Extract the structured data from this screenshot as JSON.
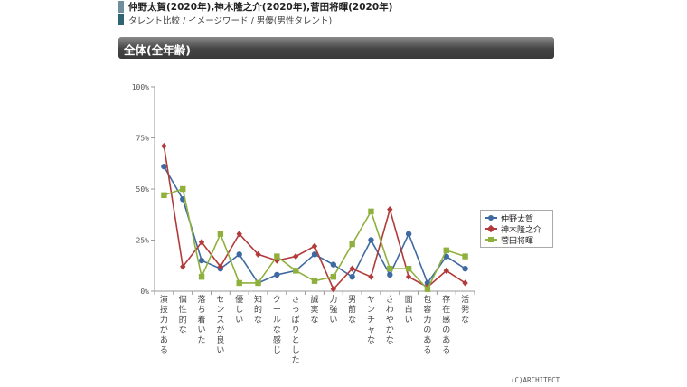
{
  "header": {
    "title": "仲野太賀(2020年),神木隆之介(2020年),菅田将暉(2020年)",
    "breadcrumb": "タレント比較 / イメージワード / 男優(男性タレント)"
  },
  "panel": {
    "title": "全体(全年齢)"
  },
  "copyright": "(C)ARCHITECT",
  "colors": {
    "仲野太賀": "#3f6aa1",
    "神木隆之介": "#b23a3a",
    "菅田将暉": "#8fb03c"
  },
  "chart_data": {
    "type": "line",
    "title": "",
    "xlabel": "",
    "ylabel": "",
    "ylim": [
      0,
      100
    ],
    "yticks": [
      "0%",
      "25%",
      "50%",
      "75%",
      "100%"
    ],
    "grid": false,
    "legend_position": "right",
    "categories": [
      "演技力がある",
      "個性的な",
      "落ち着いた",
      "センスが良い",
      "優しい",
      "知的な",
      "クールな感じ",
      "さっぱりとした",
      "誠実な",
      "力強い",
      "男前な",
      "ヤンチャな",
      "さわやかな",
      "面白い",
      "包容力のある",
      "存在感のある",
      "活発な"
    ],
    "series": [
      {
        "name": "仲野太賀",
        "color": "#3f6aa1",
        "marker": "circle",
        "values": [
          61,
          45,
          15,
          11,
          18,
          4,
          8,
          10,
          18,
          13,
          7,
          25,
          8,
          28,
          4,
          17,
          11
        ]
      },
      {
        "name": "神木隆之介",
        "color": "#b23a3a",
        "marker": "diamond",
        "values": [
          71,
          12,
          24,
          12,
          28,
          18,
          15,
          17,
          22,
          1,
          11,
          7,
          40,
          7,
          2,
          10,
          4
        ]
      },
      {
        "name": "菅田将暉",
        "color": "#8fb03c",
        "marker": "square",
        "values": [
          47,
          50,
          7,
          28,
          4,
          4,
          17,
          10,
          5,
          7,
          23,
          39,
          11,
          11,
          1,
          20,
          17
        ]
      }
    ]
  }
}
